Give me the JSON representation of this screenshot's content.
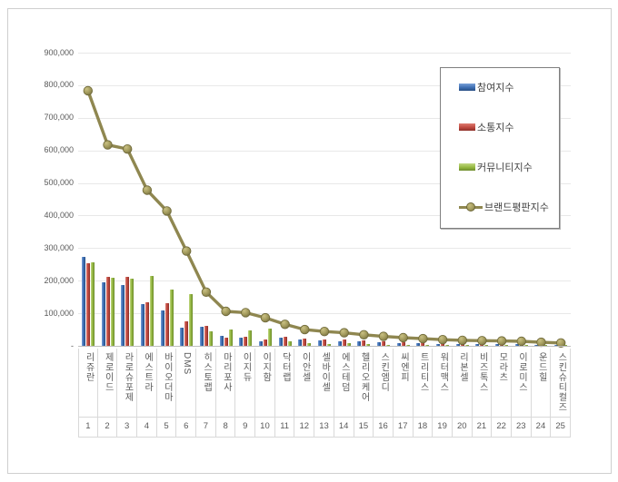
{
  "chart_data": {
    "type": "bar",
    "subtype": "bar-line-combo",
    "title": "",
    "xlabel": "",
    "ylabel": "",
    "categories": [
      "리쥬란",
      "제로이드",
      "라로슈포제",
      "에스트라",
      "바이오더마",
      "DMS",
      "히스토랩",
      "마리포사",
      "이지듀",
      "이지함",
      "닥터랩",
      "이안셀",
      "셀바이셀",
      "에스테덤",
      "헬리오케어",
      "스킨엠디",
      "씨엔피",
      "트리티스",
      "워터맥스",
      "리본셀",
      "비즈톡스",
      "모라츠",
      "이로미스",
      "운드힐",
      "스킨슈티컬즈"
    ],
    "rank_labels": [
      "1",
      "2",
      "3",
      "4",
      "5",
      "6",
      "7",
      "8",
      "9",
      "10",
      "11",
      "12",
      "13",
      "14",
      "15",
      "16",
      "17",
      "18",
      "19",
      "20",
      "21",
      "22",
      "23",
      "24",
      "25"
    ],
    "series": [
      {
        "name": "참여지수",
        "type": "bar",
        "color": "#3e6fb3",
        "values": [
          272000,
          194000,
          188000,
          128000,
          110000,
          56000,
          59000,
          30000,
          26000,
          15000,
          24000,
          19000,
          17000,
          13000,
          13000,
          11000,
          9000,
          8000,
          7000,
          6000,
          6000,
          5000,
          5000,
          4000,
          3000
        ]
      },
      {
        "name": "소통지수",
        "type": "bar",
        "color": "#c04a41",
        "values": [
          254000,
          213000,
          211000,
          135000,
          131000,
          75000,
          61000,
          26000,
          28000,
          19000,
          27000,
          22000,
          20000,
          19000,
          16000,
          14000,
          12000,
          10000,
          9000,
          8000,
          7000,
          7000,
          6000,
          5000,
          4000
        ]
      },
      {
        "name": "커뮤니티지수",
        "type": "bar",
        "color": "#94b840",
        "values": [
          257000,
          210000,
          205000,
          215000,
          173000,
          160000,
          45000,
          50000,
          48000,
          52000,
          15000,
          9000,
          7000,
          8000,
          5000,
          4000,
          4000,
          4000,
          3000,
          3000,
          3000,
          3000,
          3000,
          2000,
          2000
        ]
      },
      {
        "name": "브랜드평판지수",
        "type": "line",
        "color": "#8f8750",
        "marker_color": "#a29a5c",
        "values": [
          783000,
          617000,
          604000,
          478000,
          414000,
          291000,
          165000,
          106000,
          102000,
          86000,
          66000,
          50000,
          44000,
          40000,
          34000,
          29000,
          25000,
          22000,
          19000,
          17000,
          16000,
          15000,
          14000,
          11000,
          9000
        ]
      }
    ],
    "y_axis": {
      "min": 0,
      "max": 900000,
      "step": 100000,
      "tick_labels_bottom_to_top": [
        "-",
        "100,000",
        "200,000",
        "300,000",
        "400,000",
        "500,000",
        "600,000",
        "700,000",
        "800,000",
        "900,000"
      ]
    },
    "legend_position": "upper-right-inside",
    "grid": true,
    "colors": {
      "grid": "#e8e8e8",
      "axis": "#bfbfbf",
      "tick_text": "#595959",
      "divider": "#d9d9d9",
      "legend_border": "#7f7f7f"
    }
  }
}
